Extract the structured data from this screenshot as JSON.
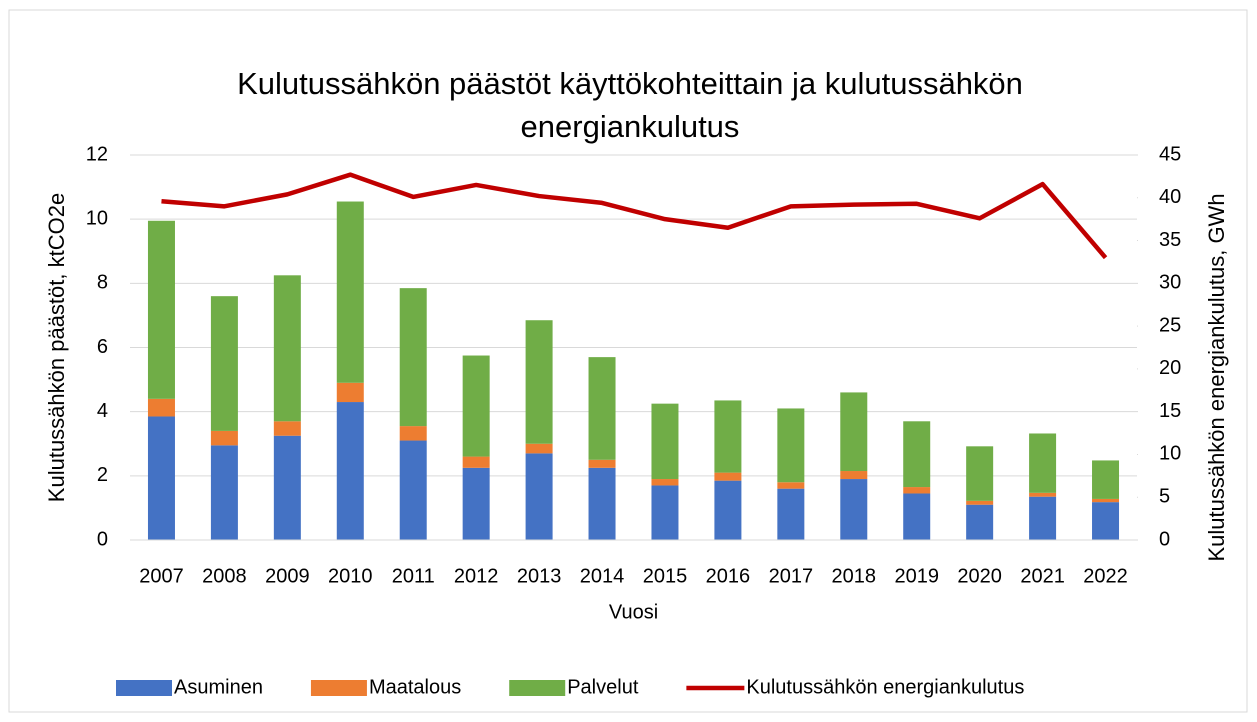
{
  "chart_data": {
    "type": "bar",
    "stacked": true,
    "title": "Kulutussähkön päästöt käyttökohteittain ja kulutussähkön energiankulutus",
    "xlabel": "Vuosi",
    "ylabel": "Kulutussähkön päästöt, ktCO2e",
    "y2label": "Kulutussähkön energiankulutus, GWh",
    "categories": [
      "2007",
      "2008",
      "2009",
      "2010",
      "2011",
      "2012",
      "2013",
      "2014",
      "2015",
      "2016",
      "2017",
      "2018",
      "2019",
      "2020",
      "2021",
      "2022"
    ],
    "series": [
      {
        "name": "Asuminen",
        "type": "bar",
        "color": "#4472c4",
        "values": [
          3.85,
          2.95,
          3.25,
          4.3,
          3.1,
          2.25,
          2.7,
          2.25,
          1.7,
          1.85,
          1.6,
          1.9,
          1.45,
          1.1,
          1.35,
          1.18
        ]
      },
      {
        "name": "Maatalous",
        "type": "bar",
        "color": "#ed7d31",
        "values": [
          0.55,
          0.45,
          0.45,
          0.6,
          0.45,
          0.35,
          0.3,
          0.25,
          0.2,
          0.25,
          0.2,
          0.25,
          0.2,
          0.12,
          0.12,
          0.1
        ]
      },
      {
        "name": "Palvelut",
        "type": "bar",
        "color": "#70ad47",
        "values": [
          5.55,
          4.2,
          4.55,
          5.65,
          4.3,
          3.15,
          3.85,
          3.2,
          2.35,
          2.25,
          2.3,
          2.45,
          2.05,
          1.7,
          1.85,
          1.2
        ]
      },
      {
        "name": "Kulutussähkön energiankulutus",
        "type": "line",
        "axis": "y2",
        "color": "#c00000",
        "values": [
          39.6,
          39.0,
          40.4,
          42.7,
          40.1,
          41.5,
          40.2,
          39.4,
          37.5,
          36.5,
          39.0,
          39.2,
          39.3,
          37.6,
          41.6,
          33.0
        ]
      }
    ],
    "ylim": [
      0,
      12
    ],
    "yticks": [
      0,
      2,
      4,
      6,
      8,
      10,
      12
    ],
    "y2lim": [
      0,
      45
    ],
    "y2ticks": [
      0,
      5,
      10,
      15,
      20,
      25,
      30,
      35,
      40,
      45
    ],
    "legend": "bottom"
  }
}
